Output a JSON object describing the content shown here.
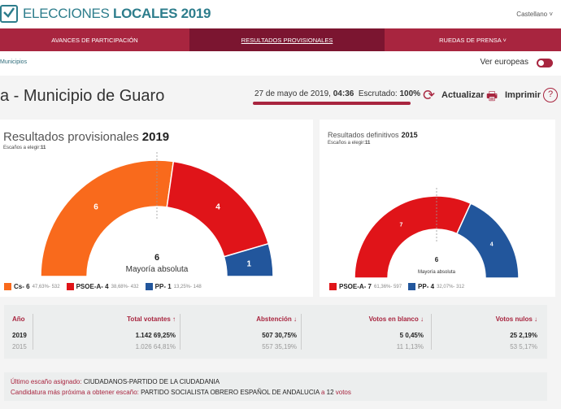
{
  "header": {
    "brand_light": "ELECCIONES",
    "brand_bold": "LOCALES 2019",
    "language": "Castellano ˅"
  },
  "nav": {
    "items": [
      {
        "label": "AVANCES DE PARTICIPACIÓN"
      },
      {
        "label": "RESULTADOS PROVISIONALES",
        "active": true
      },
      {
        "label": "RUEDAS DE PRENSA  ˅"
      }
    ]
  },
  "breadcrumb": "Municipios",
  "toggle": {
    "label": "Ver europeas",
    "on": true
  },
  "page": {
    "title": "a - Municipio de Guaro",
    "date": "27 de mayo de 2019, ",
    "time": "04:36",
    "scrutinized_label": "Escrutado: ",
    "scrutinized": "100%",
    "scrutinized_progress": 100,
    "refresh": "Actualizar",
    "print": "Imprimir",
    "help": "?"
  },
  "colors": {
    "accent": "#a8253f",
    "Cs": "#f96a1c",
    "PSOE-A": "#e01419",
    "PP": "#22569c"
  },
  "chart_data": [
    {
      "type": "pie",
      "variant": "parliament-semicircle",
      "title": "Resultados provisionales",
      "year": "2019",
      "seats_label": "Escaños a elegir:",
      "seats": "11",
      "majority": "6",
      "majority_label": "Mayoría absoluta",
      "series": [
        {
          "name": "Cs",
          "seats": 6,
          "label": "Cs- 6",
          "detail": "47,63%- 532",
          "color": "#f96a1c"
        },
        {
          "name": "PSOE-A",
          "seats": 4,
          "label": "PSOE-A- 4",
          "detail": "38,68%- 432",
          "color": "#e01419"
        },
        {
          "name": "PP",
          "seats": 1,
          "label": "PP- 1",
          "detail": "13,25%- 148",
          "color": "#22569c"
        }
      ]
    },
    {
      "type": "pie",
      "variant": "parliament-semicircle",
      "title": "Resultados definitivos",
      "year": "2015",
      "seats_label": "Escaños a elegir:",
      "seats": "11",
      "majority": "6",
      "majority_label": "Mayoría absoluta",
      "series": [
        {
          "name": "PSOE-A",
          "seats": 7,
          "label": "PSOE-A- 7",
          "detail": "61,36%- 597",
          "color": "#e01419"
        },
        {
          "name": "PP",
          "seats": 4,
          "label": "PP- 4",
          "detail": "32,07%- 312",
          "color": "#22569c"
        }
      ]
    }
  ],
  "stats": {
    "headers": [
      "Año",
      "Total votantes ↑",
      "Abstención ↓",
      "Votos en blanco ↓",
      "Votos nulos ↓"
    ],
    "rows": [
      [
        "2019",
        "1.142  69,25%",
        "507  30,75%",
        "5  0,45%",
        "25  2,19%"
      ],
      [
        "2015",
        "1.026  64,81%",
        "557  35,19%",
        "11  1,13%",
        "53  5,17%"
      ]
    ]
  },
  "info": {
    "last_label": "Último escaño asignado: ",
    "last_value": "CIUDADANOS-PARTIDO DE LA CIUDADANIA",
    "next_label": "Candidatura más próxima a obtener escaño: ",
    "next_value": "PARTIDO SOCIALISTA OBRERO ESPAÑOL DE ANDALUCIA",
    "next_a": " a ",
    "next_votes": "12",
    "next_votes_label": " votos"
  }
}
